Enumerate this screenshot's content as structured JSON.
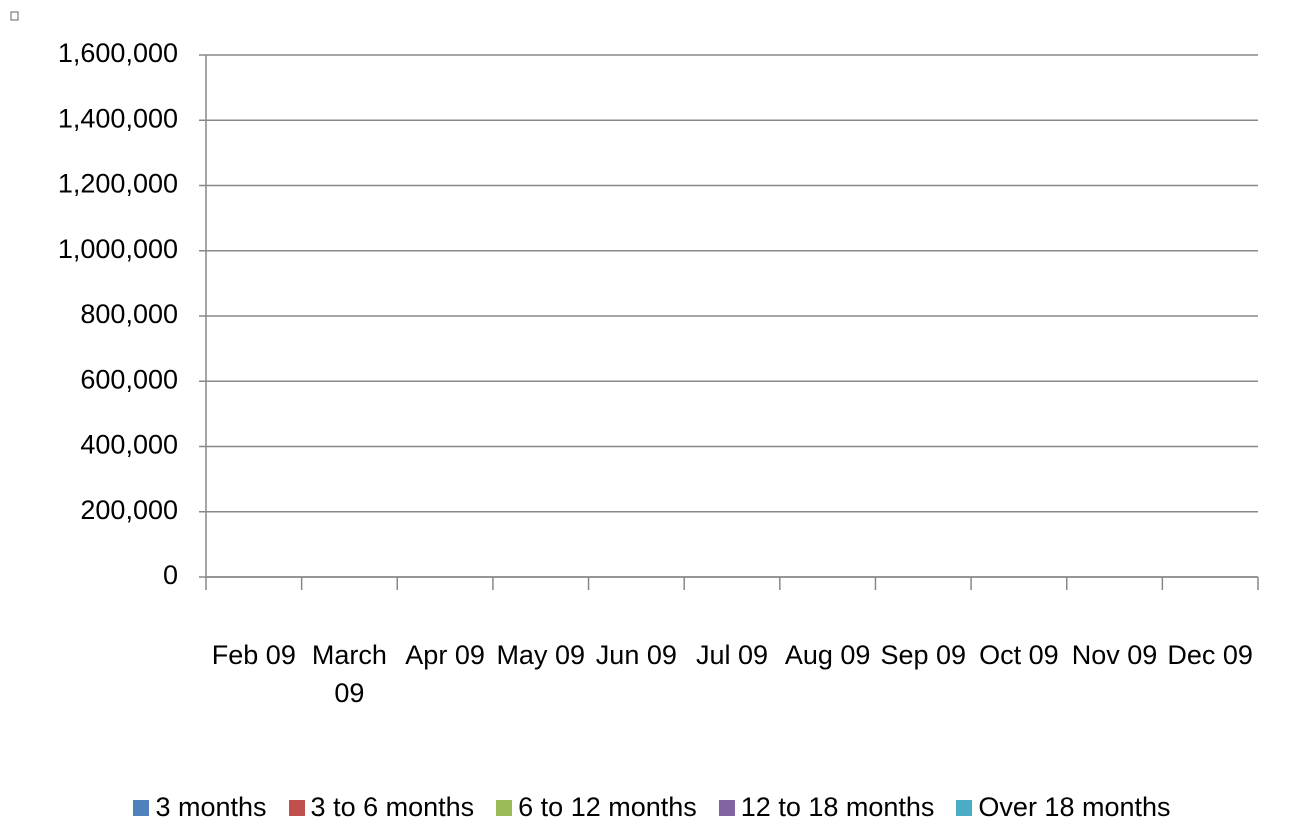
{
  "chart_data": {
    "type": "bar",
    "stacked": true,
    "categories": [
      "Feb 09",
      "March 09",
      "Apr 09",
      "May 09",
      "Jun 09",
      "Jul 09",
      "Aug 09",
      "Sep 09",
      "Oct 09",
      "Nov 09",
      "Dec 09"
    ],
    "series": [
      {
        "name": "3 months",
        "color": "#4f81bd",
        "values": [
          0,
          0,
          0,
          0,
          0,
          0,
          0,
          0,
          0,
          0,
          0
        ]
      },
      {
        "name": "3 to 6 months",
        "color": "#c0504d",
        "values": [
          0,
          0,
          0,
          0,
          0,
          0,
          0,
          0,
          0,
          0,
          0
        ]
      },
      {
        "name": "6 to 12 months",
        "color": "#9bbb59",
        "values": [
          0,
          0,
          0,
          0,
          0,
          0,
          0,
          0,
          0,
          0,
          0
        ]
      },
      {
        "name": "12 to 18 months",
        "color": "#8064a2",
        "values": [
          0,
          0,
          0,
          0,
          0,
          0,
          0,
          0,
          0,
          0,
          0
        ]
      },
      {
        "name": "Over 18 months",
        "color": "#4bacc6",
        "values": [
          0,
          0,
          0,
          0,
          0,
          0,
          0,
          0,
          0,
          0,
          0
        ]
      }
    ],
    "ylim": [
      0,
      1600000
    ],
    "yticks": [
      0,
      {
        "value": 200000,
        "label": "200,000"
      },
      {
        "value": 400000,
        "label": "400,000"
      },
      {
        "value": 600000,
        "label": "600,000"
      },
      {
        "value": 800000,
        "label": "800,000"
      },
      {
        "value": 1000000,
        "label": "1,000,000"
      },
      {
        "value": 1200000,
        "label": "1,200,000"
      },
      {
        "value": 1400000,
        "label": "1,400,000"
      },
      {
        "value": 1600000,
        "label": "1,600,000"
      }
    ],
    "grid": true,
    "legend": "bottom"
  }
}
